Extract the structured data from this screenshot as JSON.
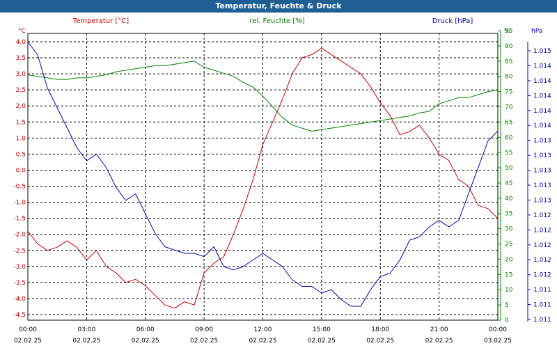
{
  "window": {
    "title": "Temperatur, Feuchte & Druck"
  },
  "colors": {
    "temperature": "#c00000",
    "humidity": "#008000",
    "pressure": "#0000a0",
    "grid": "#000000",
    "title_bg": "#1f5f94"
  },
  "chart_data": {
    "type": "line",
    "grid": true,
    "x_ticks": [
      {
        "time": "00:00",
        "date": "02.02.25"
      },
      {
        "time": "03:00",
        "date": "02.02.25"
      },
      {
        "time": "06:00",
        "date": "02.02.25"
      },
      {
        "time": "09:00",
        "date": "02.02.25"
      },
      {
        "time": "12:00",
        "date": "02.02.25"
      },
      {
        "time": "15:00",
        "date": "02.02.25"
      },
      {
        "time": "18:00",
        "date": "02.02.25"
      },
      {
        "time": "21:00",
        "date": "02.02.25"
      },
      {
        "time": "00:00",
        "date": "03.02.25"
      }
    ],
    "x_range_hours": [
      0,
      24
    ],
    "axes": {
      "temperature": {
        "label": "Temperatur [°C]",
        "unit": "°C",
        "range": [
          -4.5,
          4.0
        ],
        "ticks": [
          "4.0",
          "3.5",
          "3.0",
          "2.5",
          "2.0",
          "1.5",
          "1.0",
          "0.5",
          "0.0",
          "-0.5",
          "-1.0",
          "-1.5",
          "-2.0",
          "-2.5",
          "-3.0",
          "-3.5",
          "-4.0",
          "-4.5"
        ]
      },
      "humidity": {
        "label": "rel. Feuchte [%]",
        "unit": "%",
        "range": [
          0,
          95
        ],
        "ticks": [
          "95",
          "90",
          "85",
          "80",
          "75",
          "70",
          "65",
          "60",
          "55",
          "50",
          "45",
          "40",
          "35",
          "30",
          "25",
          "20",
          "15",
          "10",
          "5",
          "0"
        ]
      },
      "pressure": {
        "label": "Druck [hPa]",
        "unit": "hPa",
        "range": [
          1011.0,
          1015.2
        ],
        "ticks": [
          "1.015",
          "1.014",
          "1.014",
          "1.014",
          "1.014",
          "1.014",
          "1.013",
          "1.013",
          "1.013",
          "1.013",
          "1.013",
          "1.012",
          "1.012",
          "1.012",
          "1.012",
          "1.012",
          "1.011",
          "1.011",
          "1.011"
        ]
      }
    },
    "series": [
      {
        "name": "Temperatur [°C]",
        "axis": "temperature",
        "x": [
          0,
          0.5,
          1,
          1.5,
          2,
          2.5,
          3,
          3.5,
          4,
          4.5,
          5,
          5.5,
          6,
          6.5,
          7,
          7.5,
          8,
          8.5,
          9,
          9.5,
          10,
          10.5,
          11,
          11.5,
          12,
          12.5,
          13,
          13.5,
          14,
          14.5,
          15,
          15.5,
          16,
          16.5,
          17,
          17.5,
          18,
          18.5,
          19,
          19.5,
          20,
          20.5,
          21,
          21.5,
          22,
          22.5,
          23,
          23.5,
          24
        ],
        "y": [
          -1.9,
          -2.3,
          -2.5,
          -2.4,
          -2.2,
          -2.4,
          -2.8,
          -2.5,
          -3.0,
          -3.2,
          -3.5,
          -3.4,
          -3.6,
          -3.9,
          -4.2,
          -4.3,
          -4.1,
          -4.2,
          -3.2,
          -2.9,
          -2.7,
          -2.0,
          -1.2,
          -0.3,
          0.8,
          1.5,
          2.2,
          3.0,
          3.5,
          3.6,
          3.8,
          3.6,
          3.4,
          3.2,
          3.0,
          2.6,
          2.1,
          1.7,
          1.1,
          1.2,
          1.4,
          1.0,
          0.5,
          0.3,
          -0.3,
          -0.5,
          -1.1,
          -1.2,
          -1.5
        ]
      },
      {
        "name": "rel. Feuchte [%]",
        "axis": "humidity",
        "x": [
          0,
          0.5,
          1,
          1.5,
          2,
          2.5,
          3,
          3.5,
          4,
          4.5,
          5,
          5.5,
          6,
          6.5,
          7,
          7.5,
          8,
          8.5,
          9,
          9.5,
          10,
          10.5,
          11,
          11.5,
          12,
          12.5,
          13,
          13.5,
          14,
          14.5,
          15,
          15.5,
          16,
          16.5,
          17,
          17.5,
          18,
          18.5,
          19,
          19.5,
          20,
          20.5,
          21,
          21.5,
          22,
          22.5,
          23,
          23.5,
          24
        ],
        "y": [
          80.5,
          80,
          79.5,
          79,
          79,
          79.5,
          79.5,
          80,
          80.5,
          81.5,
          82,
          82.5,
          83,
          83.5,
          83.5,
          84,
          84.5,
          85,
          83,
          82,
          81,
          80,
          78,
          76.5,
          73.5,
          70,
          66.5,
          64,
          63,
          62,
          62.5,
          63,
          63.5,
          64,
          64.5,
          65,
          65.5,
          66,
          66.5,
          67,
          68,
          68.5,
          71,
          72,
          73,
          73,
          74,
          75,
          75.5
        ]
      },
      {
        "name": "Druck [hPa]",
        "axis": "pressure",
        "x": [
          0,
          0.5,
          1,
          1.5,
          2,
          2.5,
          3,
          3.5,
          4,
          4.5,
          5,
          5.5,
          6,
          6.5,
          7,
          7.5,
          8,
          8.5,
          9,
          9.5,
          10,
          10.5,
          11,
          11.5,
          12,
          12.5,
          13,
          13.5,
          14,
          14.5,
          15,
          15.5,
          16,
          16.5,
          17,
          17.5,
          18,
          18.5,
          19,
          19.5,
          20,
          20.5,
          21,
          21.5,
          22,
          22.5,
          23,
          23.5,
          24
        ],
        "y": [
          1015.2,
          1015.0,
          1014.5,
          1014.2,
          1013.9,
          1013.6,
          1013.4,
          1013.5,
          1013.3,
          1013.0,
          1012.8,
          1012.9,
          1012.6,
          1012.3,
          1012.1,
          1012.05,
          1012.0,
          1012.0,
          1011.95,
          1012.1,
          1011.8,
          1011.75,
          1011.8,
          1011.9,
          1012.0,
          1011.9,
          1011.8,
          1011.6,
          1011.5,
          1011.5,
          1011.4,
          1011.45,
          1011.3,
          1011.2,
          1011.2,
          1011.45,
          1011.65,
          1011.7,
          1011.9,
          1012.2,
          1012.25,
          1012.4,
          1012.5,
          1012.4,
          1012.5,
          1012.9,
          1013.3,
          1013.7,
          1013.85
        ]
      }
    ]
  }
}
